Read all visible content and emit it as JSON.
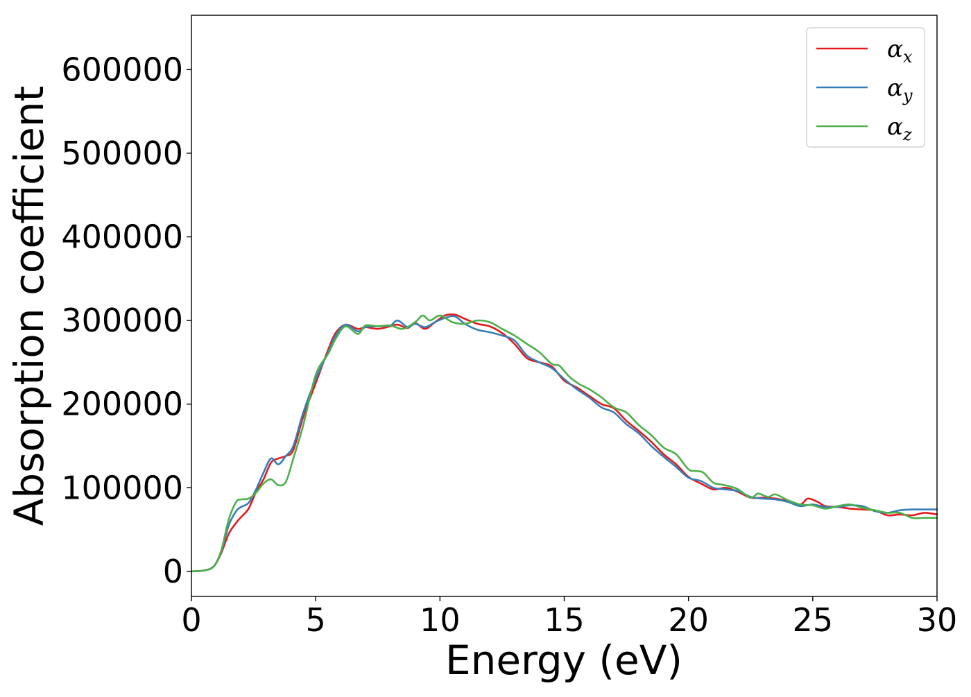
{
  "chart_data": {
    "type": "line",
    "title": "",
    "xlabel": "Energy (eV)",
    "ylabel": "Absorption coefficient",
    "xlim": [
      0,
      30
    ],
    "ylim": [
      -30000,
      665000
    ],
    "xticks": [
      0,
      5,
      10,
      15,
      20,
      25,
      30
    ],
    "yticks": [
      0,
      100000,
      200000,
      300000,
      400000,
      500000,
      600000
    ],
    "grid": false,
    "legend_position": "top-right",
    "series": [
      {
        "name": "α",
        "subscript": "x",
        "color": "#e41a1c",
        "x": [
          0,
          0.5,
          0.9,
          1.2,
          1.5,
          1.8,
          2.0,
          2.3,
          2.6,
          2.9,
          3.2,
          3.5,
          3.8,
          4.1,
          4.5,
          5.0,
          5.5,
          5.8,
          6.2,
          6.7,
          7.0,
          7.5,
          8.0,
          8.3,
          8.7,
          9.0,
          9.4,
          9.8,
          10.2,
          10.6,
          11.0,
          11.5,
          12.0,
          12.5,
          13.0,
          13.5,
          14.0,
          14.5,
          15.0,
          15.5,
          16.0,
          16.5,
          17.0,
          17.5,
          18.0,
          18.5,
          19.0,
          19.5,
          20.0,
          20.5,
          21.0,
          21.5,
          22.0,
          22.5,
          23.0,
          23.5,
          24.0,
          24.5,
          24.8,
          25.2,
          25.5,
          26.0,
          26.5,
          27.0,
          27.5,
          28.0,
          28.5,
          29.0,
          29.5,
          30.0
        ],
        "y": [
          0,
          1000,
          6000,
          22000,
          45000,
          58000,
          65000,
          75000,
          95000,
          110000,
          130000,
          135000,
          138000,
          145000,
          185000,
          225000,
          265000,
          285000,
          295000,
          290000,
          292000,
          290000,
          293000,
          295000,
          291000,
          297000,
          290000,
          298000,
          306000,
          307000,
          302000,
          296000,
          293000,
          285000,
          272000,
          255000,
          250000,
          245000,
          228000,
          220000,
          210000,
          200000,
          195000,
          180000,
          168000,
          155000,
          140000,
          128000,
          113000,
          105000,
          98000,
          100000,
          95000,
          88000,
          88000,
          87000,
          84000,
          80000,
          87000,
          83000,
          78000,
          77000,
          75000,
          74000,
          73000,
          67000,
          68000,
          67000,
          70000,
          68000
        ]
      },
      {
        "name": "α",
        "subscript": "y",
        "color": "#377eb8",
        "x": [
          0,
          0.5,
          0.9,
          1.2,
          1.5,
          1.8,
          2.0,
          2.3,
          2.6,
          2.9,
          3.2,
          3.5,
          3.8,
          4.1,
          4.5,
          5.0,
          5.5,
          5.8,
          6.2,
          6.7,
          7.0,
          7.5,
          8.0,
          8.3,
          8.7,
          9.0,
          9.4,
          9.8,
          10.2,
          10.6,
          11.0,
          11.5,
          12.0,
          12.5,
          13.0,
          13.5,
          14.0,
          14.5,
          15.0,
          15.5,
          16.0,
          16.5,
          17.0,
          17.5,
          18.0,
          18.5,
          19.0,
          19.5,
          20.0,
          20.5,
          21.0,
          21.5,
          22.0,
          22.5,
          23.0,
          23.5,
          24.0,
          24.5,
          25.0,
          25.5,
          26.0,
          26.5,
          27.0,
          27.5,
          28.0,
          28.5,
          29.0,
          29.5,
          30.0
        ],
        "y": [
          0,
          1000,
          6000,
          24000,
          55000,
          72000,
          77000,
          82000,
          98000,
          118000,
          135000,
          128000,
          138000,
          150000,
          190000,
          230000,
          262000,
          282000,
          295000,
          287000,
          292000,
          293000,
          294000,
          300000,
          292000,
          296000,
          292000,
          298000,
          303000,
          305000,
          296000,
          289000,
          286000,
          282000,
          276000,
          258000,
          250000,
          243000,
          230000,
          218000,
          208000,
          196000,
          190000,
          176000,
          165000,
          150000,
          137000,
          125000,
          112000,
          108000,
          100000,
          98000,
          96000,
          89000,
          87000,
          86000,
          83000,
          78000,
          80000,
          77000,
          77000,
          79000,
          78000,
          72000,
          70000,
          73000,
          74000,
          74000,
          74000
        ]
      },
      {
        "name": "α",
        "subscript": "z",
        "color": "#4daf4a",
        "x": [
          0,
          0.5,
          0.9,
          1.2,
          1.5,
          1.8,
          2.0,
          2.3,
          2.6,
          2.9,
          3.2,
          3.5,
          3.8,
          4.1,
          4.5,
          5.0,
          5.5,
          5.8,
          6.2,
          6.7,
          7.0,
          7.5,
          8.0,
          8.5,
          9.0,
          9.3,
          9.6,
          10.0,
          10.5,
          11.0,
          11.5,
          12.0,
          12.5,
          13.0,
          13.5,
          14.0,
          14.5,
          14.8,
          15.2,
          15.6,
          16.0,
          16.5,
          17.0,
          17.5,
          18.0,
          18.5,
          19.0,
          19.5,
          20.0,
          20.3,
          20.6,
          21.0,
          21.3,
          21.6,
          22.0,
          22.5,
          22.8,
          23.2,
          23.5,
          24.0,
          24.5,
          25.0,
          25.5,
          26.0,
          26.5,
          27.0,
          27.5,
          28.0,
          28.5,
          29.0,
          29.5,
          30.0
        ],
        "y": [
          0,
          1000,
          6000,
          25000,
          62000,
          83000,
          86000,
          87000,
          94000,
          105000,
          110000,
          103000,
          107000,
          135000,
          175000,
          235000,
          260000,
          278000,
          293000,
          284000,
          294000,
          293000,
          294000,
          290000,
          298000,
          306000,
          300000,
          306000,
          298000,
          296000,
          300000,
          298000,
          290000,
          282000,
          272000,
          262000,
          248000,
          246000,
          233000,
          224000,
          218000,
          208000,
          196000,
          190000,
          175000,
          163000,
          148000,
          140000,
          122000,
          120000,
          118000,
          106000,
          104000,
          102000,
          98000,
          88000,
          93000,
          89000,
          92000,
          85000,
          80000,
          79000,
          75000,
          78000,
          80000,
          76000,
          73000,
          70000,
          70000,
          64000,
          64000,
          64000
        ]
      }
    ]
  }
}
